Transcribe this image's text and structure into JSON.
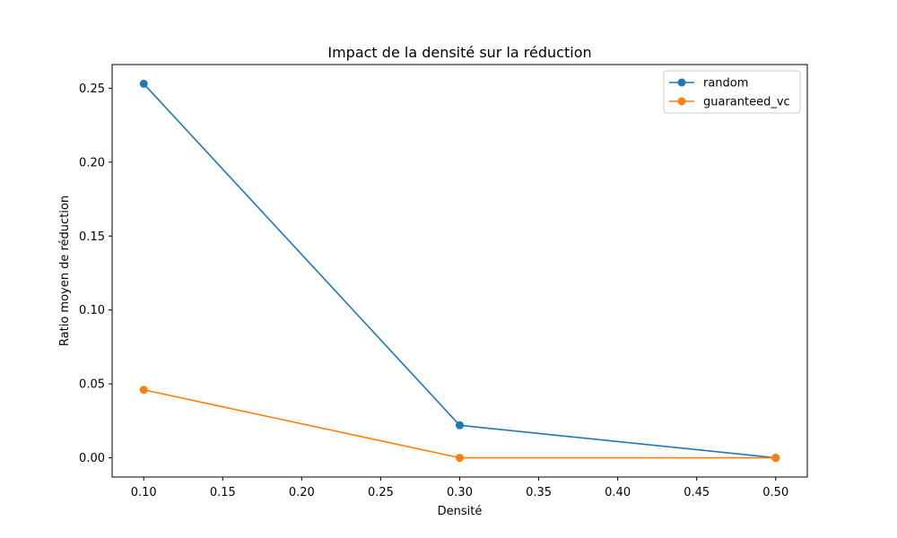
{
  "chart_data": {
    "type": "line",
    "title": "Impact de la densité sur la réduction",
    "xlabel": "Densité",
    "ylabel": "Ratio moyen de réduction",
    "x": [
      0.1,
      0.3,
      0.5
    ],
    "xlim": [
      0.08,
      0.52
    ],
    "ylim": [
      -0.013,
      0.266
    ],
    "xticks": [
      0.1,
      0.15,
      0.2,
      0.25,
      0.3,
      0.35,
      0.4,
      0.45,
      0.5
    ],
    "xtick_labels": [
      "0.10",
      "0.15",
      "0.20",
      "0.25",
      "0.30",
      "0.35",
      "0.40",
      "0.45",
      "0.50"
    ],
    "yticks": [
      0.0,
      0.05,
      0.1,
      0.15,
      0.2,
      0.25
    ],
    "ytick_labels": [
      "0.00",
      "0.05",
      "0.10",
      "0.15",
      "0.20",
      "0.25"
    ],
    "grid": false,
    "legend_position": "top-right",
    "series": [
      {
        "name": "random",
        "color": "#1f77b4",
        "values": [
          0.253,
          0.022,
          0.0
        ]
      },
      {
        "name": "guaranteed_vc",
        "color": "#ff7f0e",
        "values": [
          0.046,
          0.0,
          0.0
        ]
      }
    ]
  }
}
